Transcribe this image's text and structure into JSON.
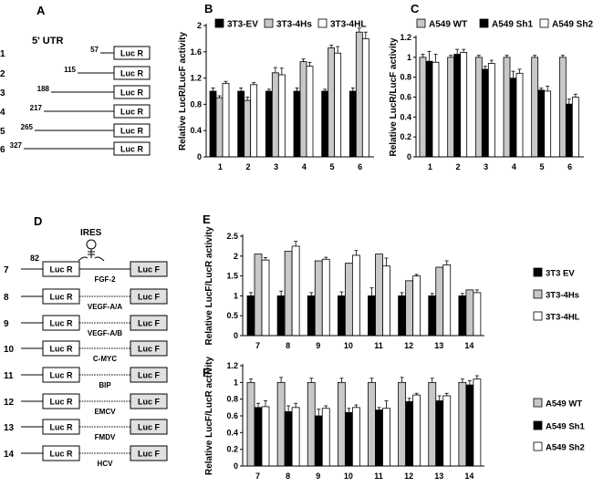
{
  "panels": {
    "A": {
      "letter": "A",
      "header": "5' UTR",
      "rows": [
        {
          "num": "1",
          "pos": "57",
          "box": "Luc R"
        },
        {
          "num": "2",
          "pos": "115",
          "box": "Luc R"
        },
        {
          "num": "3",
          "pos": "188",
          "box": "Luc R"
        },
        {
          "num": "4",
          "pos": "217",
          "box": "Luc R"
        },
        {
          "num": "5",
          "pos": "265",
          "box": "Luc R"
        },
        {
          "num": "6",
          "pos": "327",
          "box": "Luc R"
        }
      ]
    },
    "D": {
      "letter": "D",
      "header": "IRES",
      "pos_label": "82",
      "rows": [
        {
          "num": "7",
          "left": "Luc R",
          "right": "Luc F",
          "name": "FGF-2"
        },
        {
          "num": "8",
          "left": "Luc R",
          "right": "Luc F",
          "name": "VEGF-A/A"
        },
        {
          "num": "9",
          "left": "Luc R",
          "right": "Luc F",
          "name": "VEGF-A/B"
        },
        {
          "num": "10",
          "left": "Luc R",
          "right": "Luc F",
          "name": "C-MYC"
        },
        {
          "num": "11",
          "left": "Luc R",
          "right": "Luc F",
          "name": "BIP"
        },
        {
          "num": "12",
          "left": "Luc R",
          "right": "Luc F",
          "name": "EMCV"
        },
        {
          "num": "13",
          "left": "Luc R",
          "right": "Luc F",
          "name": "FMDV"
        },
        {
          "num": "14",
          "left": "Luc R",
          "right": "Luc F",
          "name": "HCV"
        }
      ]
    }
  },
  "colors": {
    "black": "#000000",
    "gray": "#c8c8c8",
    "white": "#ffffff"
  },
  "chart_data": [
    {
      "id": "B",
      "letter": "B",
      "type": "bar",
      "ylabel": "Relative LucR/LucF activity",
      "categories": [
        "1",
        "2",
        "3",
        "4",
        "5",
        "6"
      ],
      "ylim": [
        0,
        2.0
      ],
      "yticks": [
        0,
        0.4,
        0.8,
        1.2,
        1.6,
        2.0
      ],
      "ytick_labels": [
        "0",
        "0.4",
        "0.8",
        "1.2",
        "1.6",
        "2"
      ],
      "legend": "top",
      "series": [
        {
          "name": "3T3-EV",
          "color": "#000000",
          "values": [
            1.0,
            1.0,
            1.0,
            1.0,
            1.0,
            1.0
          ],
          "err": [
            0.05,
            0.05,
            0.03,
            0.05,
            0.03,
            0.05
          ]
        },
        {
          "name": "3T3-4Hs",
          "color": "#c8c8c8",
          "values": [
            0.9,
            0.86,
            1.28,
            1.45,
            1.66,
            1.9
          ],
          "err": [
            0.03,
            0.05,
            0.08,
            0.04,
            0.04,
            0.06
          ]
        },
        {
          "name": "3T3-4HL",
          "color": "#ffffff",
          "values": [
            1.12,
            1.1,
            1.25,
            1.38,
            1.58,
            1.8
          ],
          "err": [
            0.03,
            0.03,
            0.1,
            0.06,
            0.1,
            0.1
          ]
        }
      ]
    },
    {
      "id": "C",
      "letter": "C",
      "type": "bar",
      "ylabel": "Relative LucR/LucF activity",
      "categories": [
        "1",
        "2",
        "3",
        "4",
        "5",
        "6"
      ],
      "ylim": [
        0,
        1.2
      ],
      "yticks": [
        0,
        0.2,
        0.4,
        0.6,
        0.8,
        1.0,
        1.2
      ],
      "ytick_labels": [
        "0",
        "0.2",
        "0.4",
        "0.6",
        "0.8",
        "1",
        "1.2"
      ],
      "legend": "top",
      "series": [
        {
          "name": "A549 WT",
          "color": "#c8c8c8",
          "values": [
            1.0,
            1.0,
            1.0,
            1.0,
            1.0,
            1.0
          ],
          "err": [
            0.03,
            0.02,
            0.02,
            0.02,
            0.02,
            0.02
          ]
        },
        {
          "name": "A549 Sh1",
          "color": "#000000",
          "values": [
            0.96,
            1.03,
            0.88,
            0.79,
            0.67,
            0.53
          ],
          "err": [
            0.1,
            0.05,
            0.03,
            0.07,
            0.02,
            0.05
          ]
        },
        {
          "name": "A549 Sh2",
          "color": "#ffffff",
          "values": [
            0.95,
            1.05,
            0.94,
            0.84,
            0.66,
            0.6
          ],
          "err": [
            0.08,
            0.03,
            0.03,
            0.04,
            0.05,
            0.03
          ]
        }
      ]
    },
    {
      "id": "E",
      "letter": "E",
      "type": "bar",
      "ylabel": "Relative LucF/LucR activity",
      "categories": [
        "7",
        "8",
        "9",
        "10",
        "11",
        "12",
        "13",
        "14"
      ],
      "ylim": [
        0,
        2.5
      ],
      "yticks": [
        0,
        0.5,
        1.0,
        1.5,
        2.0,
        2.5
      ],
      "ytick_labels": [
        "0",
        "0.5",
        "1",
        "1.5",
        "2",
        "2.5"
      ],
      "legend": "right",
      "series": [
        {
          "name": "3T3 EV",
          "color": "#000000",
          "values": [
            1.0,
            1.0,
            1.0,
            1.0,
            1.0,
            1.0,
            1.0,
            1.0
          ],
          "err": [
            0.08,
            0.12,
            0.08,
            0.1,
            0.2,
            0.08,
            0.06,
            0.06
          ]
        },
        {
          "name": "3T3-4Hs",
          "color": "#c8c8c8",
          "values": [
            2.05,
            2.12,
            1.88,
            1.82,
            2.05,
            1.38,
            1.72,
            1.15
          ]
        },
        {
          "name": "3T3-4HL",
          "color": "#ffffff",
          "values": [
            1.9,
            2.25,
            1.92,
            2.02,
            1.75,
            1.5,
            1.78,
            1.08
          ],
          "err": [
            0.06,
            0.12,
            0.05,
            0.12,
            0.2,
            0.04,
            0.1,
            0.07
          ]
        }
      ]
    },
    {
      "id": "F",
      "letter": "F",
      "type": "bar",
      "ylabel": "Relative LucF/LucR activity",
      "categories": [
        "7",
        "8",
        "9",
        "10",
        "11",
        "12",
        "13",
        "14"
      ],
      "ylim": [
        0,
        1.2
      ],
      "yticks": [
        0,
        0.2,
        0.4,
        0.6,
        0.8,
        1.0,
        1.2
      ],
      "ytick_labels": [
        "0",
        "0.2",
        "0.4",
        "0.6",
        "0.8",
        "1",
        "1.2"
      ],
      "legend": "right",
      "series": [
        {
          "name": "A549 WT",
          "color": "#c8c8c8",
          "values": [
            1.0,
            1.0,
            1.0,
            1.0,
            1.0,
            1.0,
            1.0,
            1.0
          ],
          "err": [
            0.04,
            0.06,
            0.05,
            0.05,
            0.05,
            0.06,
            0.05,
            0.04
          ]
        },
        {
          "name": "A549 Sh1",
          "color": "#000000",
          "values": [
            0.7,
            0.65,
            0.6,
            0.64,
            0.67,
            0.77,
            0.78,
            0.97
          ],
          "err": [
            0.05,
            0.07,
            0.08,
            0.05,
            0.03,
            0.04,
            0.06,
            0.05
          ]
        },
        {
          "name": "A549 Sh2",
          "color": "#ffffff",
          "values": [
            0.71,
            0.7,
            0.69,
            0.7,
            0.69,
            0.85,
            0.84,
            1.04
          ],
          "err": [
            0.07,
            0.05,
            0.03,
            0.03,
            0.09,
            0.02,
            0.03,
            0.04
          ]
        }
      ]
    }
  ]
}
